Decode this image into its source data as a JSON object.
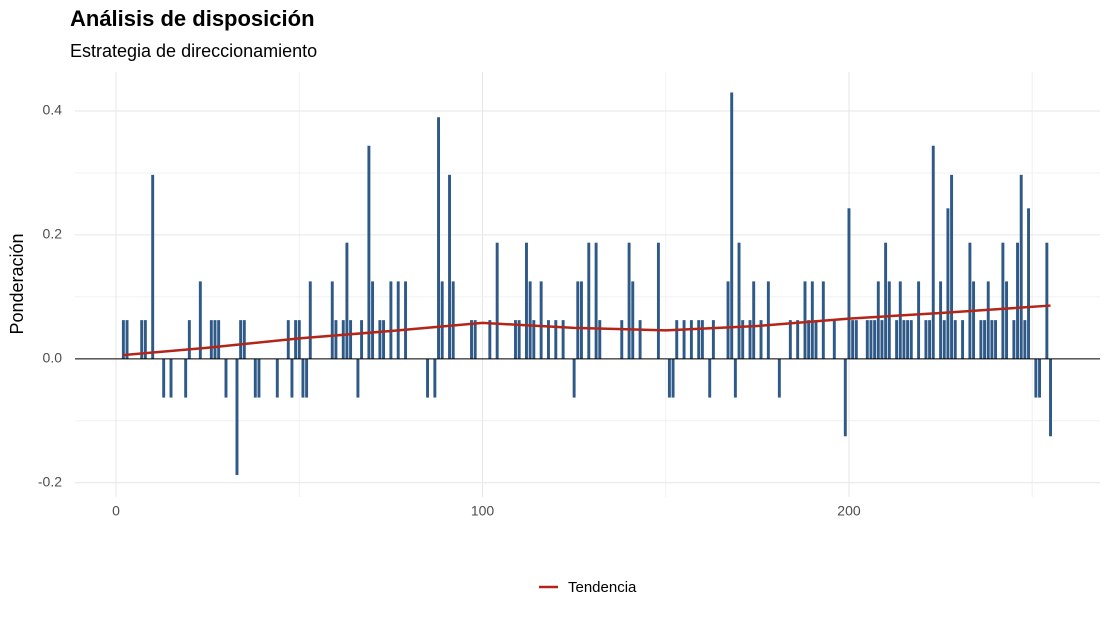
{
  "chart_data": {
    "type": "bar",
    "title": "Análisis de disposición",
    "subtitle": "Estrategia de direccionamiento",
    "y_label": "Ponderación",
    "color": "#2f5a87",
    "x": [
      2,
      3,
      7,
      8,
      10,
      13,
      15,
      19,
      20,
      23,
      26,
      27,
      28,
      30,
      33,
      34,
      35,
      38,
      39,
      44,
      47,
      48,
      49,
      50,
      51,
      52,
      53,
      59,
      60,
      62,
      63,
      64,
      66,
      67,
      69,
      70,
      72,
      73,
      75,
      77,
      79,
      85,
      87,
      88,
      89,
      91,
      92,
      97,
      98,
      102,
      104,
      109,
      110,
      112,
      113,
      114,
      116,
      118,
      120,
      122,
      125,
      126,
      127,
      129,
      131,
      132,
      138,
      140,
      141,
      143,
      148,
      151,
      152,
      153,
      155,
      157,
      159,
      160,
      162,
      163,
      167,
      168,
      169,
      170,
      171,
      173,
      174,
      176,
      178,
      181,
      184,
      186,
      188,
      189,
      190,
      191,
      193,
      196,
      199,
      200,
      201,
      202,
      205,
      206,
      207,
      208,
      209,
      210,
      211,
      213,
      214,
      215,
      216,
      217,
      219,
      221,
      222,
      223,
      225,
      226,
      227,
      228,
      229,
      231,
      233,
      234,
      236,
      237,
      238,
      239,
      240,
      242,
      243,
      245,
      246,
      247,
      248,
      249,
      251,
      252,
      254,
      255
    ],
    "values": [
      0.0625,
      0.0625,
      0.0625,
      0.0625,
      0.297,
      -0.0625,
      -0.0625,
      -0.0625,
      0.0625,
      0.125,
      0.0625,
      0.0625,
      0.0625,
      -0.0625,
      -0.1875,
      0.0625,
      0.0625,
      -0.0625,
      -0.0625,
      -0.0625,
      0.0625,
      -0.0625,
      0.0625,
      0.0625,
      -0.0625,
      -0.0625,
      0.125,
      0.125,
      0.0625,
      0.0625,
      0.1875,
      0.0625,
      -0.0625,
      0.0625,
      0.344,
      0.125,
      0.0625,
      0.0625,
      0.125,
      0.125,
      0.125,
      -0.0625,
      -0.0625,
      0.39,
      0.125,
      0.297,
      0.125,
      0.0625,
      0.0625,
      0.0625,
      0.1875,
      0.0625,
      0.0625,
      0.1875,
      0.125,
      0.0625,
      0.125,
      0.0625,
      0.0625,
      0.0625,
      -0.0625,
      0.125,
      0.125,
      0.1875,
      0.1875,
      0.0625,
      0.0625,
      0.1875,
      0.125,
      0.0625,
      0.1875,
      -0.0625,
      -0.0625,
      0.0625,
      0.0625,
      0.0625,
      0.0625,
      0.0625,
      -0.0625,
      0.0625,
      0.125,
      0.43,
      -0.0625,
      0.1875,
      0.0625,
      0.0625,
      0.125,
      0.0625,
      0.125,
      -0.0625,
      0.0625,
      0.0625,
      0.125,
      0.0625,
      0.125,
      0.0625,
      0.125,
      0.0625,
      -0.125,
      0.243,
      0.0625,
      0.0625,
      0.0625,
      0.0625,
      0.0625,
      0.125,
      0.0625,
      0.1875,
      0.125,
      0.0625,
      0.125,
      0.0625,
      0.0625,
      0.0625,
      0.125,
      0.0625,
      0.0625,
      0.344,
      0.125,
      0.0625,
      0.243,
      0.297,
      0.0625,
      0.0625,
      0.1875,
      0.125,
      0.0625,
      0.0625,
      0.125,
      0.0625,
      0.0625,
      0.1875,
      0.125,
      0.0625,
      0.1875,
      0.297,
      0.0625,
      0.243,
      -0.0625,
      -0.0625,
      0.1875,
      -0.125
    ],
    "trend": {
      "name": "Tendencia",
      "color": "#b2261a",
      "x": [
        2,
        25,
        50,
        75,
        100,
        125,
        150,
        175,
        200,
        225,
        255
      ],
      "values": [
        0.006,
        0.018,
        0.033,
        0.045,
        0.058,
        0.05,
        0.046,
        0.053,
        0.065,
        0.074,
        0.086
      ]
    },
    "xlim": [
      -11.2,
      268.5
    ],
    "ylim": [
      -0.223,
      0.463
    ],
    "xticks": [
      0,
      100,
      200
    ],
    "yticks": [
      -0.2,
      {
        "value": 0,
        "label": "0.0"
      },
      0.2,
      0.4
    ],
    "x_minor_grid": [
      50,
      150,
      250
    ],
    "y_minor_grid": [
      -0.1,
      0.1,
      0.3
    ],
    "grid": true
  }
}
